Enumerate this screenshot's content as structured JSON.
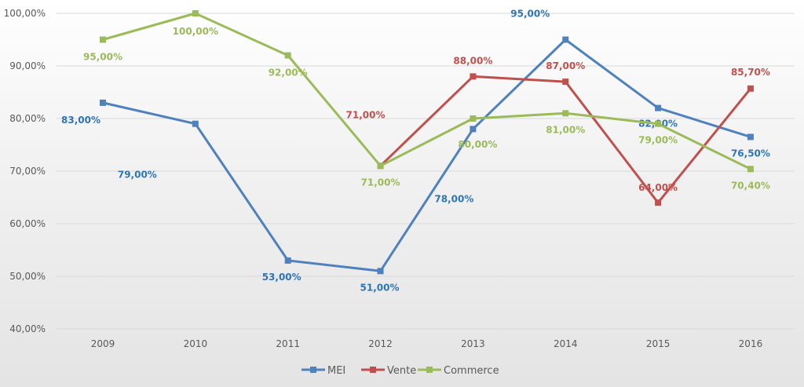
{
  "chart_data": {
    "type": "line",
    "title": "",
    "xlabel": "",
    "ylabel": "",
    "categories": [
      "2009",
      "2010",
      "2011",
      "2012",
      "2013",
      "2014",
      "2015",
      "2016"
    ],
    "ylim": [
      40,
      100
    ],
    "yticks": [
      "40,00%",
      "50,00%",
      "60,00%",
      "70,00%",
      "80,00%",
      "90,00%",
      "100,00%"
    ],
    "grid": true,
    "legend_position": "bottom",
    "series": [
      {
        "name": "MEI",
        "color": "#4f81bd",
        "label_color": "#2e75b6",
        "values": [
          83,
          79,
          53,
          51,
          78,
          95,
          82,
          76.5
        ],
        "labels": [
          "83,00%",
          "79,00%",
          "53,00%",
          "51,00%",
          "78,00%",
          "95,00%",
          "82,00%",
          "76,50%"
        ]
      },
      {
        "name": "Vente",
        "color": "#c0504d",
        "label_color": "#c0504d",
        "values": [
          null,
          null,
          null,
          71,
          88,
          87,
          64,
          85.7
        ],
        "labels": [
          null,
          null,
          null,
          "71,00%",
          "88,00%",
          "87,00%",
          "64,00%",
          "85,70%"
        ]
      },
      {
        "name": "Commerce",
        "color": "#9bbb59",
        "label_color": "#9bbb59",
        "values": [
          95,
          100,
          92,
          71,
          80,
          81,
          79,
          70.4
        ],
        "labels": [
          "95,00%",
          "100,00%",
          "92,00%",
          "71,00%",
          "80,00%",
          "81,00%",
          "79,00%",
          "70,40%"
        ]
      }
    ]
  }
}
